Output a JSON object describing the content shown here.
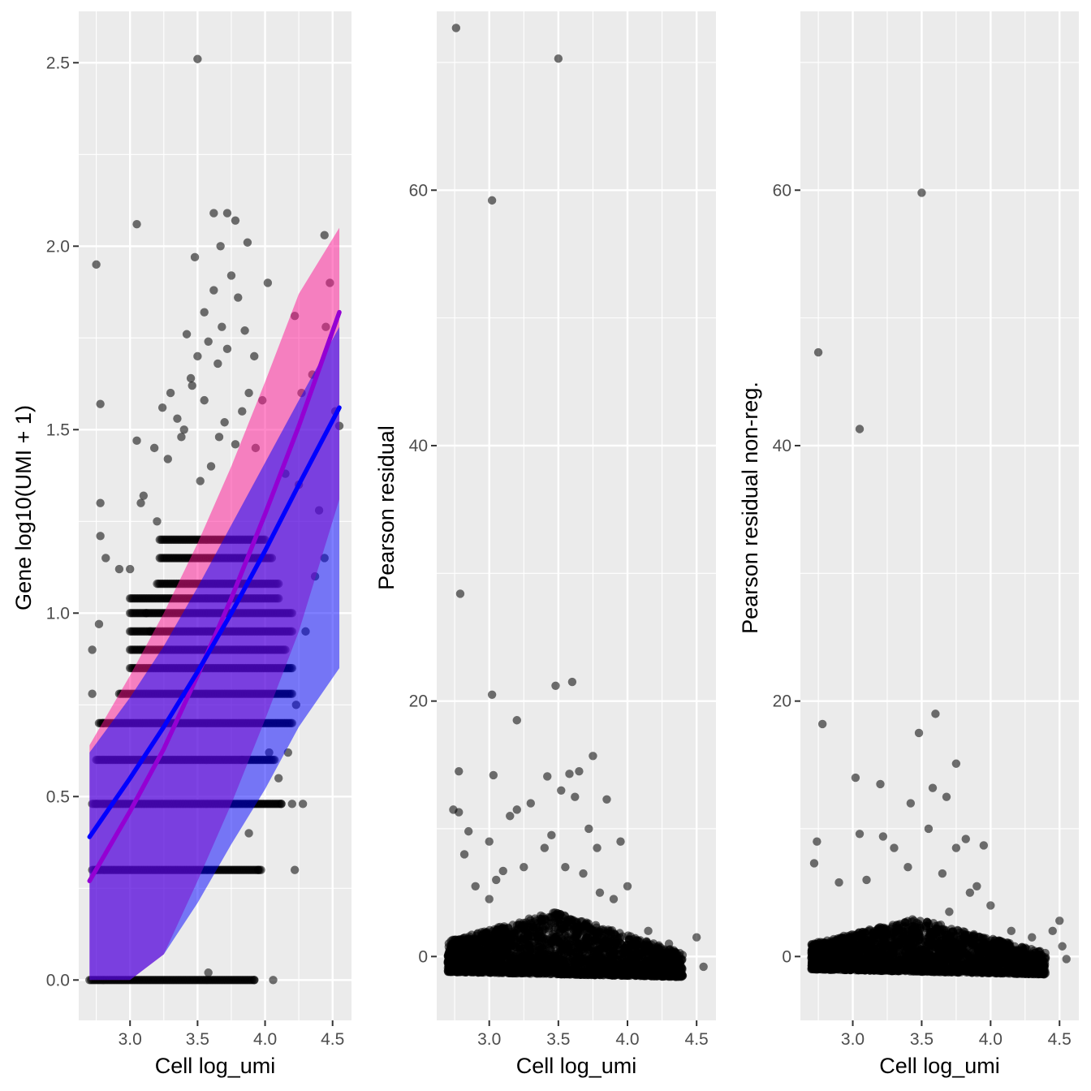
{
  "chart_data": [
    {
      "type": "scatter",
      "panel": "left",
      "xlabel": "Cell log_umi",
      "ylabel": "Gene log10(UMI + 1)",
      "xlim": [
        2.62,
        4.64
      ],
      "ylim": [
        -0.11,
        2.64
      ],
      "x_ticks": [
        3.0,
        3.5,
        4.0,
        4.5
      ],
      "x_tick_labels": [
        "3.0",
        "3.5",
        "4.0",
        "4.5"
      ],
      "y_ticks": [
        0.0,
        0.5,
        1.0,
        1.5,
        2.0,
        2.5
      ],
      "y_tick_labels": [
        "0.0",
        "0.5",
        "1.0",
        "1.5",
        "2.0",
        "2.5"
      ],
      "grid": true,
      "background": "#ebebeb",
      "point_color": "#000000",
      "outlier_points": [
        [
          3.5,
          2.51
        ],
        [
          2.75,
          1.95
        ],
        [
          3.05,
          2.06
        ],
        [
          3.62,
          2.09
        ],
        [
          3.72,
          2.09
        ],
        [
          3.78,
          2.07
        ],
        [
          3.67,
          2.0
        ],
        [
          3.87,
          2.01
        ],
        [
          4.02,
          1.9
        ],
        [
          3.48,
          1.97
        ],
        [
          3.75,
          1.92
        ],
        [
          3.8,
          1.86
        ],
        [
          3.62,
          1.88
        ],
        [
          3.55,
          1.82
        ],
        [
          4.22,
          1.81
        ],
        [
          4.44,
          2.03
        ],
        [
          4.48,
          1.9
        ],
        [
          4.45,
          1.78
        ],
        [
          2.78,
          1.57
        ],
        [
          3.05,
          1.47
        ],
        [
          3.18,
          1.45
        ],
        [
          3.1,
          1.32
        ],
        [
          3.3,
          1.6
        ],
        [
          3.35,
          1.53
        ],
        [
          3.42,
          1.76
        ],
        [
          3.45,
          1.64
        ],
        [
          3.5,
          1.7
        ],
        [
          3.58,
          1.74
        ],
        [
          3.65,
          1.68
        ],
        [
          3.85,
          1.77
        ],
        [
          3.92,
          1.7
        ],
        [
          3.98,
          1.58
        ],
        [
          2.78,
          1.3
        ],
        [
          2.78,
          1.21
        ],
        [
          2.82,
          1.15
        ],
        [
          2.92,
          1.12
        ],
        [
          3.0,
          1.12
        ],
        [
          3.08,
          1.3
        ],
        [
          3.2,
          1.25
        ],
        [
          3.15,
          0.95
        ],
        [
          4.27,
          1.6
        ],
        [
          4.35,
          1.65
        ],
        [
          4.52,
          1.55
        ],
        [
          4.55,
          1.51
        ],
        [
          4.44,
          1.15
        ],
        [
          4.23,
          0.75
        ],
        [
          4.17,
          0.62
        ],
        [
          4.28,
          0.48
        ],
        [
          4.2,
          0.48
        ],
        [
          4.12,
          0.48
        ],
        [
          4.1,
          0.55
        ],
        [
          4.03,
          0.62
        ],
        [
          3.95,
          0.3
        ],
        [
          3.88,
          0.4
        ],
        [
          3.83,
          0.6
        ],
        [
          3.58,
          0.02
        ],
        [
          4.06,
          0.0
        ],
        [
          3.92,
          0.0
        ],
        [
          2.72,
          0.9
        ],
        [
          2.77,
          0.97
        ],
        [
          2.72,
          0.78
        ],
        [
          2.75,
          0.48
        ],
        [
          2.75,
          0.3
        ],
        [
          2.8,
          0.7
        ],
        [
          3.12,
          1.0
        ],
        [
          4.22,
          0.3
        ],
        [
          4.3,
          0.95
        ],
        [
          4.4,
          1.28
        ],
        [
          4.37,
          1.1
        ],
        [
          4.15,
          1.38
        ],
        [
          4.25,
          1.35
        ],
        [
          3.6,
          1.4
        ],
        [
          3.66,
          1.48
        ],
        [
          3.7,
          1.52
        ],
        [
          3.78,
          1.46
        ],
        [
          3.83,
          1.55
        ],
        [
          3.88,
          1.6
        ],
        [
          3.93,
          1.45
        ],
        [
          3.38,
          1.48
        ],
        [
          3.28,
          1.42
        ],
        [
          3.24,
          1.56
        ],
        [
          3.4,
          1.5
        ],
        [
          3.52,
          1.36
        ],
        [
          3.46,
          1.62
        ],
        [
          3.55,
          1.58
        ],
        [
          3.72,
          1.72
        ],
        [
          3.68,
          1.78
        ]
      ],
      "bands": [
        {
          "y": 1.2,
          "x": [
            3.22,
            4.0
          ]
        },
        {
          "y": 1.15,
          "x": [
            3.22,
            4.05
          ]
        },
        {
          "y": 1.08,
          "x": [
            3.2,
            4.1
          ]
        },
        {
          "y": 1.04,
          "x": [
            3.0,
            4.1
          ]
        },
        {
          "y": 1.0,
          "x": [
            3.0,
            4.2
          ]
        },
        {
          "y": 0.95,
          "x": [
            3.0,
            4.2
          ]
        },
        {
          "y": 0.9,
          "x": [
            3.0,
            4.15
          ]
        },
        {
          "y": 0.85,
          "x": [
            3.0,
            4.2
          ]
        },
        {
          "y": 0.78,
          "x": [
            2.92,
            4.2
          ]
        },
        {
          "y": 0.7,
          "x": [
            2.77,
            4.2
          ]
        },
        {
          "y": 0.6,
          "x": [
            2.75,
            4.07
          ]
        },
        {
          "y": 0.48,
          "x": [
            2.72,
            4.12
          ]
        },
        {
          "y": 0.3,
          "x": [
            2.72,
            3.97
          ]
        },
        {
          "y": 0.0,
          "x": [
            2.7,
            3.92
          ]
        }
      ],
      "fit_lines": [
        {
          "color": "#9400d3",
          "ribbon_color": "#ff1493",
          "x": [
            2.7,
            3.0,
            3.25,
            3.5,
            3.75,
            4.0,
            4.25,
            4.55
          ],
          "y": [
            0.27,
            0.46,
            0.63,
            0.83,
            1.04,
            1.27,
            1.51,
            1.82
          ],
          "lower": [
            0.0,
            0.0,
            0.07,
            0.27,
            0.48,
            0.71,
            0.95,
            1.31
          ],
          "upper": [
            0.64,
            0.83,
            1.0,
            1.19,
            1.4,
            1.63,
            1.87,
            2.05
          ]
        },
        {
          "color": "#0000ff",
          "ribbon_color": "#0000ff",
          "x": [
            2.7,
            3.0,
            3.25,
            3.5,
            3.75,
            4.0,
            4.25,
            4.55
          ],
          "y": [
            0.39,
            0.55,
            0.69,
            0.84,
            1.0,
            1.17,
            1.35,
            1.56
          ],
          "lower": [
            0.0,
            0.0,
            0.07,
            0.21,
            0.37,
            0.52,
            0.69,
            0.85
          ],
          "upper": [
            0.62,
            0.77,
            0.91,
            1.07,
            1.24,
            1.41,
            1.58,
            1.78
          ]
        }
      ]
    },
    {
      "type": "scatter",
      "panel": "middle",
      "xlabel": "Cell log_umi",
      "ylabel": "Pearson residual",
      "xlim": [
        2.62,
        4.64
      ],
      "ylim": [
        -5,
        74
      ],
      "x_ticks": [
        3.0,
        3.5,
        4.0,
        4.5
      ],
      "x_tick_labels": [
        "3.0",
        "3.5",
        "4.0",
        "4.5"
      ],
      "y_ticks": [
        0,
        20,
        40,
        60
      ],
      "y_tick_labels": [
        "0",
        "20",
        "40",
        "60"
      ],
      "grid": true,
      "background": "#ebebeb",
      "point_color": "#000000",
      "outlier_points": [
        [
          2.76,
          72.7
        ],
        [
          3.5,
          70.3
        ],
        [
          3.02,
          59.2
        ],
        [
          2.79,
          28.4
        ],
        [
          3.02,
          20.5
        ],
        [
          3.48,
          21.2
        ],
        [
          3.6,
          21.5
        ],
        [
          3.2,
          18.5
        ],
        [
          2.78,
          14.5
        ],
        [
          3.03,
          14.2
        ],
        [
          3.75,
          15.7
        ],
        [
          3.58,
          14.3
        ],
        [
          3.42,
          14.1
        ],
        [
          3.65,
          14.5
        ],
        [
          2.74,
          11.5
        ],
        [
          2.78,
          11.3
        ],
        [
          2.85,
          9.8
        ],
        [
          3.0,
          9.0
        ],
        [
          3.15,
          11.0
        ],
        [
          3.2,
          11.5
        ],
        [
          3.3,
          12.0
        ],
        [
          3.52,
          13.0
        ],
        [
          3.62,
          12.5
        ],
        [
          3.85,
          12.3
        ],
        [
          3.95,
          9.0
        ],
        [
          3.78,
          8.5
        ],
        [
          3.72,
          10.0
        ],
        [
          3.45,
          9.5
        ],
        [
          3.1,
          6.7
        ],
        [
          2.82,
          8.0
        ],
        [
          2.9,
          5.5
        ],
        [
          3.0,
          4.5
        ],
        [
          3.05,
          6.0
        ],
        [
          3.25,
          7.0
        ],
        [
          3.4,
          8.5
        ],
        [
          3.55,
          7.0
        ],
        [
          3.68,
          6.5
        ],
        [
          3.8,
          5.0
        ],
        [
          3.9,
          4.5
        ],
        [
          4.0,
          5.5
        ],
        [
          4.15,
          2.0
        ],
        [
          4.3,
          1.0
        ],
        [
          4.38,
          -0.5
        ],
        [
          4.5,
          1.5
        ],
        [
          4.55,
          -0.8
        ]
      ],
      "band": {
        "x": [
          2.7,
          4.4
        ],
        "y_low": -1.2,
        "y_high_left": 1.2,
        "y_high_mid": 3.5,
        "y_high_right": 0.3
      }
    },
    {
      "type": "scatter",
      "panel": "right",
      "xlabel": "Cell log_umi",
      "ylabel": "Pearson residual non-reg.",
      "xlim": [
        2.62,
        4.64
      ],
      "ylim": [
        -5,
        74
      ],
      "x_ticks": [
        3.0,
        3.5,
        4.0,
        4.5
      ],
      "x_tick_labels": [
        "3.0",
        "3.5",
        "4.0",
        "4.5"
      ],
      "y_ticks": [
        0,
        20,
        40,
        60
      ],
      "y_tick_labels": [
        "0",
        "20",
        "40",
        "60"
      ],
      "grid": true,
      "background": "#ebebeb",
      "point_color": "#000000",
      "outlier_points": [
        [
          3.5,
          59.8
        ],
        [
          2.75,
          47.3
        ],
        [
          3.05,
          41.3
        ],
        [
          3.6,
          19.0
        ],
        [
          3.48,
          17.5
        ],
        [
          2.78,
          18.2
        ],
        [
          3.02,
          14.0
        ],
        [
          3.2,
          13.5
        ],
        [
          3.75,
          15.1
        ],
        [
          3.58,
          13.2
        ],
        [
          3.68,
          12.5
        ],
        [
          3.42,
          12.0
        ],
        [
          2.74,
          9.0
        ],
        [
          2.72,
          7.3
        ],
        [
          2.9,
          5.8
        ],
        [
          3.05,
          9.6
        ],
        [
          3.22,
          9.4
        ],
        [
          3.3,
          8.5
        ],
        [
          3.55,
          10.0
        ],
        [
          3.75,
          8.5
        ],
        [
          3.82,
          9.2
        ],
        [
          3.95,
          8.7
        ],
        [
          3.9,
          5.5
        ],
        [
          3.1,
          6.0
        ],
        [
          3.4,
          7.0
        ],
        [
          3.65,
          6.5
        ],
        [
          3.7,
          3.5
        ],
        [
          3.85,
          5.0
        ],
        [
          4.0,
          4.0
        ],
        [
          4.15,
          2.0
        ],
        [
          4.3,
          1.5
        ],
        [
          4.45,
          2.0
        ],
        [
          4.5,
          2.8
        ],
        [
          4.52,
          0.8
        ],
        [
          4.55,
          -0.2
        ],
        [
          4.35,
          -0.5
        ]
      ],
      "band": {
        "x": [
          2.7,
          4.4
        ],
        "y_low": -1.0,
        "y_high_left": 1.0,
        "y_high_mid": 3.0,
        "y_high_right": 0.3
      }
    }
  ]
}
